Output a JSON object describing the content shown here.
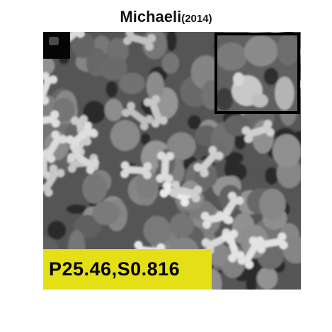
{
  "title": {
    "main": "Michaeli",
    "suffix": "(2014)"
  },
  "metrics": {
    "label": "P25.46,S0.816"
  },
  "colors": {
    "metrics_background": "#e5df16",
    "inset_border": "#000000",
    "corner_patch": "#050505"
  }
}
